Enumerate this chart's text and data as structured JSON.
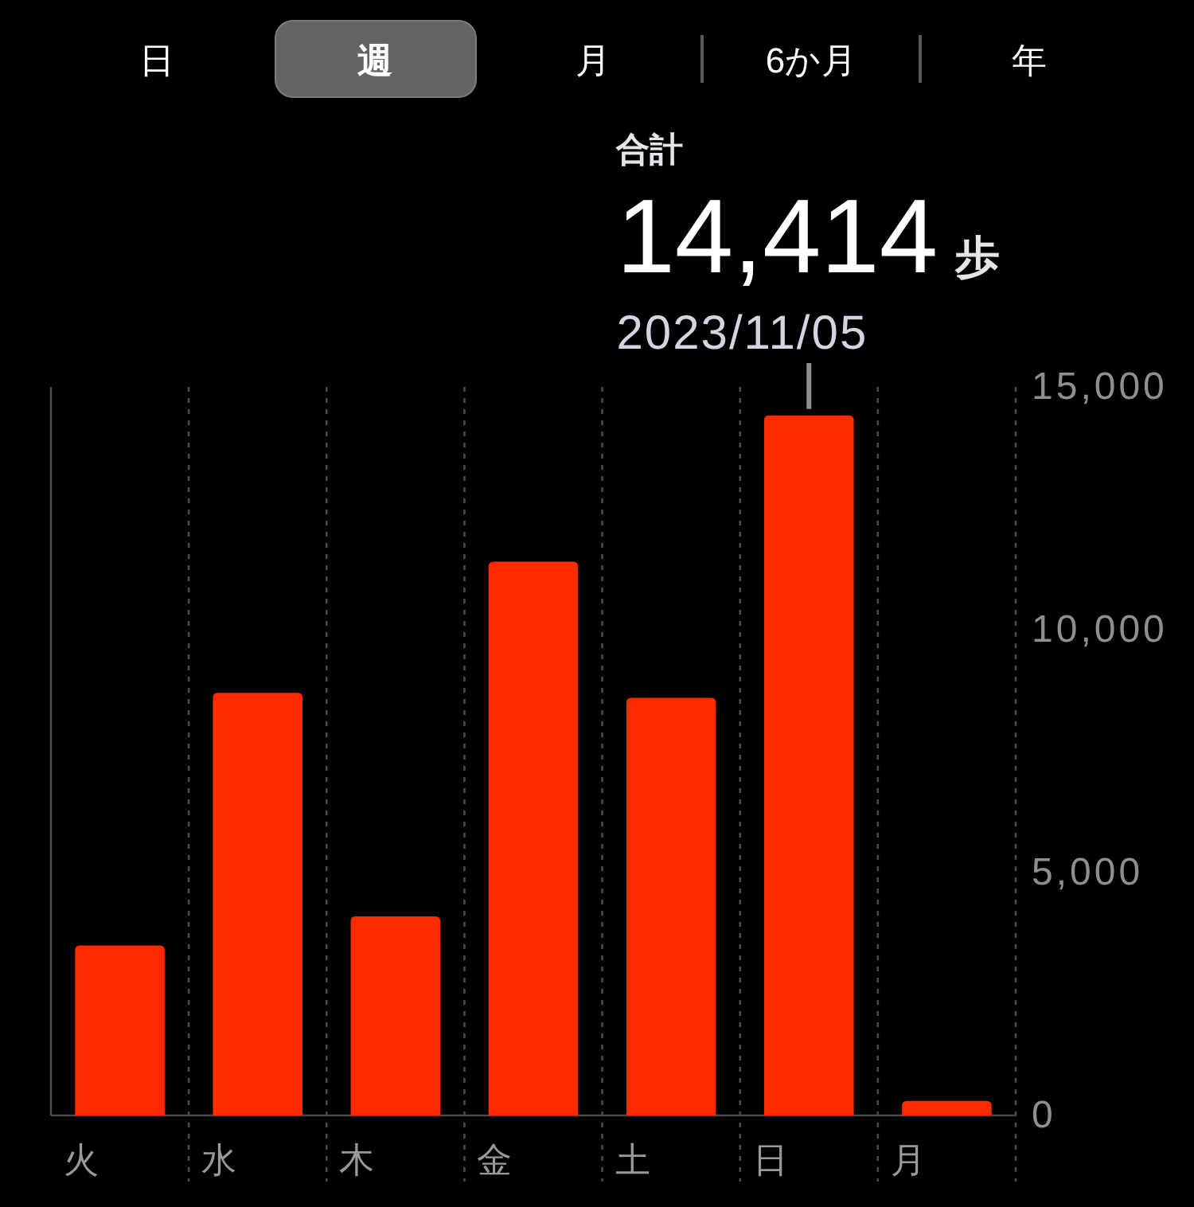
{
  "chart_data": {
    "type": "bar",
    "categories": [
      "火",
      "水",
      "木",
      "金",
      "土",
      "日",
      "月"
    ],
    "values": [
      3500,
      8700,
      4100,
      11400,
      8600,
      14414,
      300
    ],
    "color": "#ff2a00",
    "ylim": [
      0,
      15000
    ],
    "yticks": [
      0,
      {
        "value": 5000,
        "label": "5,000"
      },
      {
        "value": 10000,
        "label": "10,000"
      },
      {
        "value": 15000,
        "label": "15,000"
      }
    ],
    "grid": "x",
    "annotations": [
      "日",
      "週",
      "月",
      "6か月",
      "年",
      "合計",
      {
        "text": "14,414",
        "x": "日",
        "y": 14414
      },
      "歩",
      "2023/11/05"
    ]
  }
}
